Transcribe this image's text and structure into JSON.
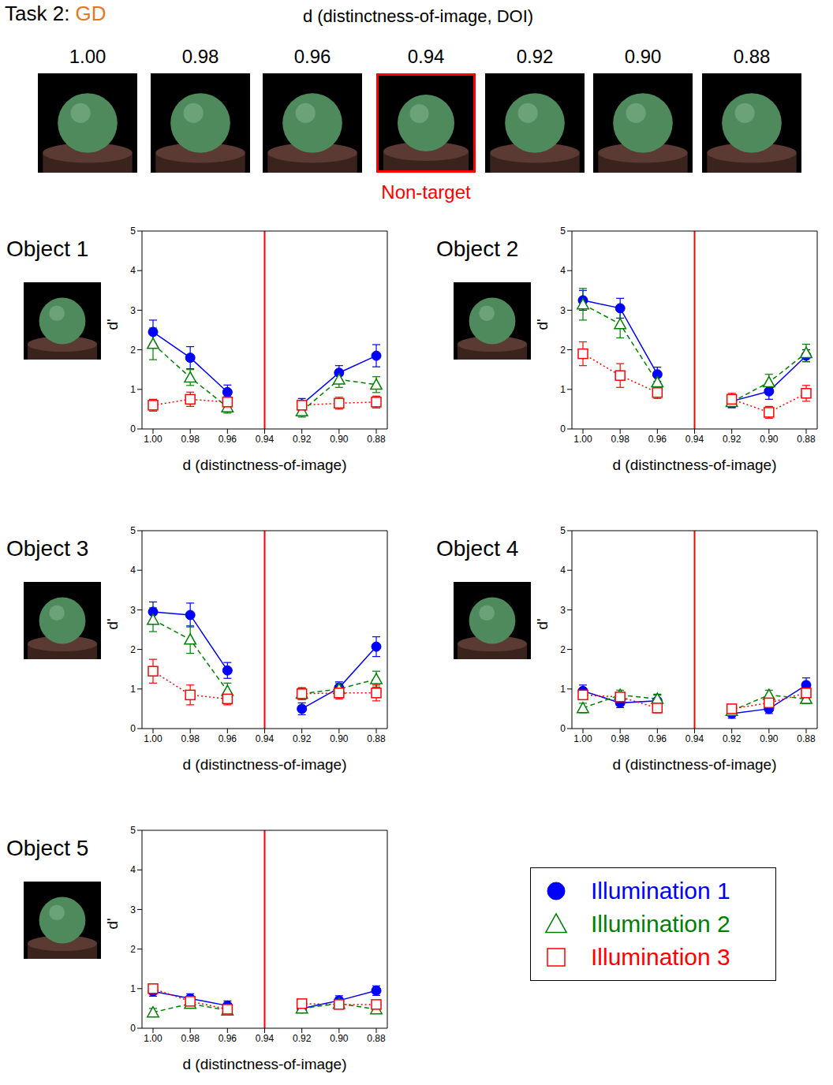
{
  "header": {
    "title": "Task 2: GD",
    "axis_label": "d (distinctness-of-image, DOI)",
    "levels": [
      "1.00",
      "0.98",
      "0.96",
      "0.94",
      "0.92",
      "0.90",
      "0.88"
    ],
    "highlight": "0.94",
    "highlight_label": "Non-target"
  },
  "legend": "bottom right",
  "chart_data": [
    {
      "type": "line",
      "title": "Object 1",
      "categories": [
        "1.00",
        "0.98",
        "0.96",
        "0.94",
        "0.92",
        "0.90",
        "0.88"
      ],
      "x_label": "d (distinctness-of-image)",
      "y_label": "d'",
      "ylim": [
        0,
        5
      ],
      "yticks": [
        0,
        1,
        2,
        3,
        4,
        5
      ],
      "reference_x": "0.94",
      "series": [
        {
          "name": "Illumination 1",
          "color": "#0000ff",
          "marker": "circle",
          "line_style": "solid",
          "values": [
            2.45,
            1.8,
            0.93,
            null,
            0.62,
            1.42,
            1.85
          ],
          "errors": [
            0.3,
            0.28,
            0.18,
            null,
            0.15,
            0.18,
            0.28
          ]
        },
        {
          "name": "Illumination 2",
          "color": "#008000",
          "marker": "triangle",
          "line_style": "dashed",
          "values": [
            2.15,
            1.3,
            0.55,
            null,
            0.45,
            1.25,
            1.12
          ],
          "errors": [
            0.4,
            0.2,
            0.15,
            null,
            0.15,
            0.2,
            0.2
          ]
        },
        {
          "name": "Illumination 3",
          "color": "#ff0000",
          "marker": "square",
          "line_style": "dotted",
          "values": [
            0.6,
            0.75,
            0.68,
            null,
            0.6,
            0.65,
            0.68
          ],
          "errors": [
            0.15,
            0.18,
            0.15,
            null,
            0.1,
            0.15,
            0.15
          ]
        }
      ]
    },
    {
      "type": "line",
      "title": "Object 2",
      "categories": [
        "1.00",
        "0.98",
        "0.96",
        "0.94",
        "0.92",
        "0.90",
        "0.88"
      ],
      "x_label": "d (distinctness-of-image)",
      "y_label": "d'",
      "ylim": [
        0,
        5
      ],
      "yticks": [
        0,
        1,
        2,
        3,
        4,
        5
      ],
      "reference_x": "0.94",
      "series": [
        {
          "name": "Illumination 1",
          "color": "#0000ff",
          "marker": "circle",
          "line_style": "solid",
          "values": [
            3.25,
            3.05,
            1.38,
            null,
            0.7,
            0.95,
            1.85
          ],
          "errors": [
            0.25,
            0.25,
            0.18,
            null,
            0.15,
            0.2,
            0.15
          ]
        },
        {
          "name": "Illumination 2",
          "color": "#008000",
          "marker": "triangle",
          "line_style": "dashed",
          "values": [
            3.15,
            2.65,
            1.18,
            null,
            0.68,
            1.18,
            1.92
          ],
          "errors": [
            0.4,
            0.35,
            0.2,
            null,
            0.15,
            0.2,
            0.22
          ]
        },
        {
          "name": "Illumination 3",
          "color": "#ff0000",
          "marker": "square",
          "line_style": "dotted",
          "values": [
            1.9,
            1.35,
            0.92,
            null,
            0.75,
            0.42,
            0.9
          ],
          "errors": [
            0.3,
            0.3,
            0.15,
            null,
            0.15,
            0.15,
            0.2
          ]
        }
      ]
    },
    {
      "type": "line",
      "title": "Object 3",
      "categories": [
        "1.00",
        "0.98",
        "0.96",
        "0.94",
        "0.92",
        "0.90",
        "0.88"
      ],
      "x_label": "d (distinctness-of-image)",
      "y_label": "d'",
      "ylim": [
        0,
        5
      ],
      "yticks": [
        0,
        1,
        2,
        3,
        4,
        5
      ],
      "reference_x": "0.94",
      "series": [
        {
          "name": "Illumination 1",
          "color": "#0000ff",
          "marker": "circle",
          "line_style": "solid",
          "values": [
            2.95,
            2.87,
            1.47,
            null,
            0.5,
            1.03,
            2.07
          ],
          "errors": [
            0.25,
            0.3,
            0.2,
            null,
            0.15,
            0.15,
            0.25
          ]
        },
        {
          "name": "Illumination 2",
          "color": "#008000",
          "marker": "triangle",
          "line_style": "dashed",
          "values": [
            2.75,
            2.25,
            0.95,
            null,
            0.88,
            1.0,
            1.25
          ],
          "errors": [
            0.3,
            0.35,
            0.2,
            null,
            0.15,
            0.15,
            0.2
          ]
        },
        {
          "name": "Illumination 3",
          "color": "#ff0000",
          "marker": "square",
          "line_style": "dotted",
          "values": [
            1.45,
            0.85,
            0.75,
            null,
            0.88,
            0.9,
            0.9
          ],
          "errors": [
            0.3,
            0.25,
            0.15,
            null,
            0.15,
            0.15,
            0.2
          ]
        }
      ]
    },
    {
      "type": "line",
      "title": "Object 4",
      "categories": [
        "1.00",
        "0.98",
        "0.96",
        "0.94",
        "0.92",
        "0.90",
        "0.88"
      ],
      "x_label": "d (distinctness-of-image)",
      "y_label": "d'",
      "ylim": [
        0,
        5
      ],
      "yticks": [
        0,
        1,
        2,
        3,
        4,
        5
      ],
      "reference_x": "0.94",
      "series": [
        {
          "name": "Illumination 1",
          "color": "#0000ff",
          "marker": "circle",
          "line_style": "solid",
          "values": [
            0.95,
            0.65,
            0.7,
            null,
            0.38,
            0.5,
            1.1
          ],
          "errors": [
            0.15,
            0.12,
            0.15,
            null,
            0.12,
            0.12,
            0.18
          ]
        },
        {
          "name": "Illumination 2",
          "color": "#008000",
          "marker": "triangle",
          "line_style": "dashed",
          "values": [
            0.52,
            0.85,
            0.75,
            null,
            0.45,
            0.85,
            0.75
          ],
          "errors": [
            0.12,
            0.12,
            0.12,
            null,
            0.1,
            0.12,
            0.12
          ]
        },
        {
          "name": "Illumination 3",
          "color": "#ff0000",
          "marker": "square",
          "line_style": "dotted",
          "values": [
            0.85,
            0.8,
            0.52,
            null,
            0.5,
            0.65,
            0.9
          ],
          "errors": [
            0.12,
            0.12,
            0.12,
            null,
            0.1,
            0.12,
            0.12
          ]
        }
      ]
    },
    {
      "type": "line",
      "title": "Object 5",
      "categories": [
        "1.00",
        "0.98",
        "0.96",
        "0.94",
        "0.92",
        "0.90",
        "0.88"
      ],
      "x_label": "d (distinctness-of-image)",
      "y_label": "d'",
      "ylim": [
        0,
        5
      ],
      "yticks": [
        0,
        1,
        2,
        3,
        4,
        5
      ],
      "reference_x": "0.94",
      "series": [
        {
          "name": "Illumination 1",
          "color": "#0000ff",
          "marker": "circle",
          "line_style": "solid",
          "values": [
            0.93,
            0.75,
            0.57,
            null,
            0.5,
            0.7,
            0.95
          ],
          "errors": [
            0.12,
            0.12,
            0.12,
            null,
            0.1,
            0.12,
            0.12
          ]
        },
        {
          "name": "Illumination 2",
          "color": "#008000",
          "marker": "triangle",
          "line_style": "dashed",
          "values": [
            0.4,
            0.62,
            0.45,
            null,
            0.5,
            0.62,
            0.48
          ],
          "errors": [
            0.1,
            0.1,
            0.1,
            null,
            0.1,
            0.1,
            0.1
          ]
        },
        {
          "name": "Illumination 3",
          "color": "#ff0000",
          "marker": "square",
          "line_style": "dotted",
          "values": [
            1.0,
            0.68,
            0.48,
            null,
            0.62,
            0.6,
            0.6
          ],
          "errors": [
            0.12,
            0.1,
            0.1,
            null,
            0.1,
            0.1,
            0.1
          ]
        }
      ]
    }
  ]
}
